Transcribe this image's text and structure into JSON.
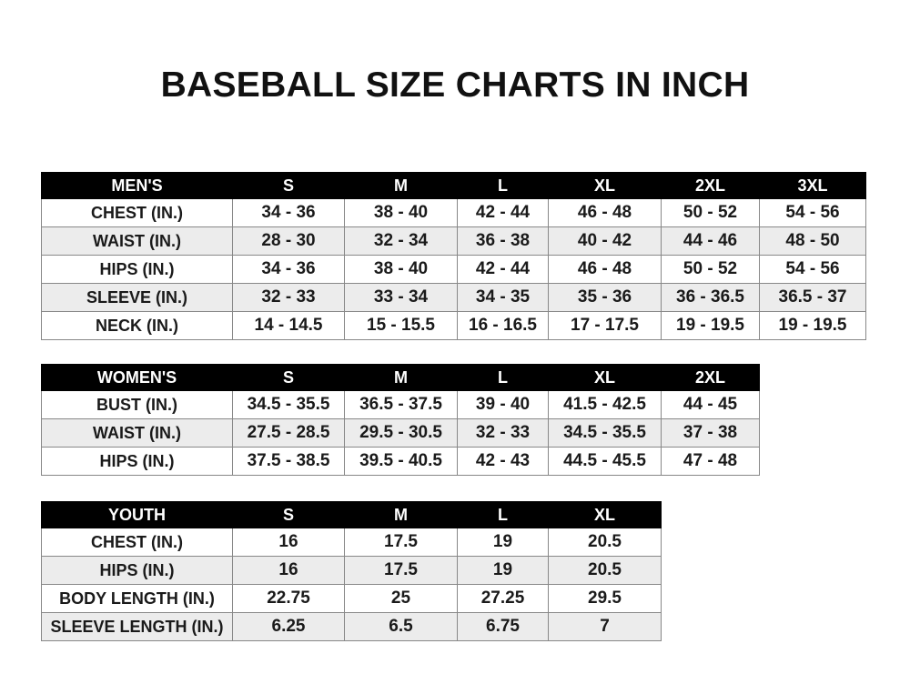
{
  "title": "BASEBALL SIZE CHARTS IN INCH",
  "tables": [
    {
      "name": "men",
      "header": [
        "MEN'S",
        "S",
        "M",
        "L",
        "XL",
        "2XL",
        "3XL"
      ],
      "rows": [
        [
          "CHEST (IN.)",
          "34 - 36",
          "38 - 40",
          "42 - 44",
          "46 - 48",
          "50 - 52",
          "54 - 56"
        ],
        [
          "WAIST (IN.)",
          "28 - 30",
          "32 - 34",
          "36 - 38",
          "40 - 42",
          "44 - 46",
          "48 - 50"
        ],
        [
          "HIPS (IN.)",
          "34 - 36",
          "38 - 40",
          "42 - 44",
          "46 - 48",
          "50 - 52",
          "54 - 56"
        ],
        [
          "SLEEVE (IN.)",
          "32 - 33",
          "33 - 34",
          "34 - 35",
          "35 - 36",
          "36 - 36.5",
          "36.5 - 37"
        ],
        [
          "NECK (IN.)",
          "14 - 14.5",
          "15 - 15.5",
          "16 - 16.5",
          "17 - 17.5",
          "19 - 19.5",
          "19 - 19.5"
        ]
      ]
    },
    {
      "name": "women",
      "header": [
        "WOMEN'S",
        "S",
        "M",
        "L",
        "XL",
        "2XL"
      ],
      "rows": [
        [
          "BUST (IN.)",
          "34.5 - 35.5",
          "36.5 - 37.5",
          "39 - 40",
          "41.5 - 42.5",
          "44 - 45"
        ],
        [
          "WAIST (IN.)",
          "27.5 - 28.5",
          "29.5 - 30.5",
          "32 - 33",
          "34.5 - 35.5",
          "37 - 38"
        ],
        [
          "HIPS (IN.)",
          "37.5 - 38.5",
          "39.5 - 40.5",
          "42 - 43",
          "44.5 - 45.5",
          "47 - 48"
        ]
      ]
    },
    {
      "name": "youth",
      "header": [
        "YOUTH",
        "S",
        "M",
        "L",
        "XL"
      ],
      "rows": [
        [
          "CHEST (IN.)",
          "16",
          "17.5",
          "19",
          "20.5"
        ],
        [
          "HIPS (IN.)",
          "16",
          "17.5",
          "19",
          "20.5"
        ],
        [
          "BODY LENGTH (IN.)",
          "22.75",
          "25",
          "27.25",
          "29.5"
        ],
        [
          "SLEEVE LENGTH (IN.)",
          "6.25",
          "6.5",
          "6.75",
          "7"
        ]
      ]
    }
  ]
}
